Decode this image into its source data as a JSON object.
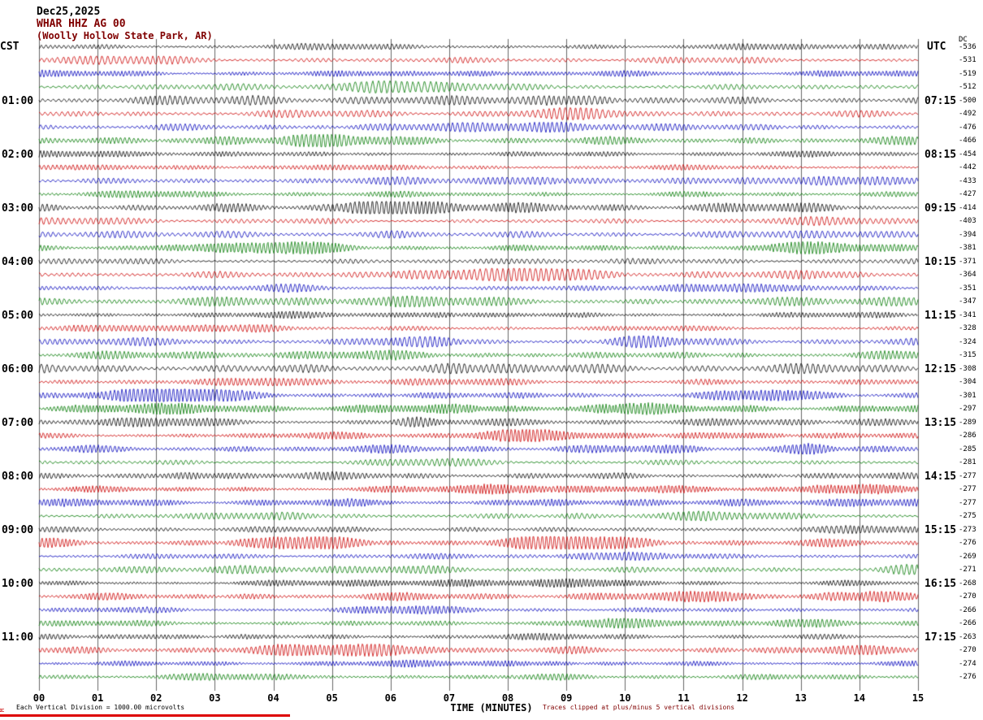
{
  "chart_data": {
    "type": "line",
    "subtype": "helicorder-seismogram",
    "title": "Dec25,2025",
    "station": "WHAR HHZ AG 00",
    "location": "(Woolly Hollow State Park, AR)",
    "xlabel": "TIME (MINUTES)",
    "x_ticks": [
      "00",
      "01",
      "02",
      "03",
      "04",
      "05",
      "06",
      "07",
      "08",
      "09",
      "10",
      "11",
      "12",
      "13",
      "14",
      "15"
    ],
    "x_range_minutes": [
      0,
      15
    ],
    "rows": 48,
    "minutes_per_row": 15,
    "grid": "vertical line at each minute, no horizontal gridlines",
    "trace_color_cycle": [
      "#000000",
      "#cc0000",
      "#0000bb",
      "#007a00"
    ],
    "left_axis": {
      "header": "CST",
      "label_every_n_rows": 4,
      "labels": [
        "01:00",
        "02:00",
        "03:00",
        "04:00",
        "05:00",
        "06:00",
        "07:00",
        "08:00",
        "09:00",
        "10:00",
        "11:00"
      ]
    },
    "right_axis": {
      "header": "UTC",
      "label_every_n_rows": 4,
      "labels": [
        "07:15",
        "08:15",
        "09:15",
        "10:15",
        "11:15",
        "12:15",
        "13:15",
        "14:15",
        "15:15",
        "16:15",
        "17:15"
      ]
    },
    "dc_offsets": {
      "header": "DC",
      "values": [
        -536,
        -531,
        -519,
        -512,
        -500,
        -492,
        -476,
        -466,
        -454,
        -442,
        -433,
        -427,
        -414,
        -403,
        -394,
        -381,
        -371,
        -364,
        -351,
        -347,
        -341,
        -328,
        -324,
        -315,
        -308,
        -304,
        -301,
        -297,
        -289,
        -286,
        -285,
        -281,
        -277,
        -277,
        -277,
        -275,
        -273,
        -276,
        -269,
        -271,
        -268,
        -270,
        -266,
        -266,
        -263,
        -270,
        -274,
        -276
      ]
    },
    "footer": {
      "scale_note": "Each Vertical Division = 1000.00 microvolts",
      "clip_note": "Traces clipped at plus/minus 5 vertical divisions",
      "corner_mark": "M"
    },
    "waveform": {
      "description": "continuous microseismic background noise on every 15-minute trace row; varying amplitude packets, clipped at plus/minus 5 vertical divisions",
      "seed": 1987
    }
  }
}
